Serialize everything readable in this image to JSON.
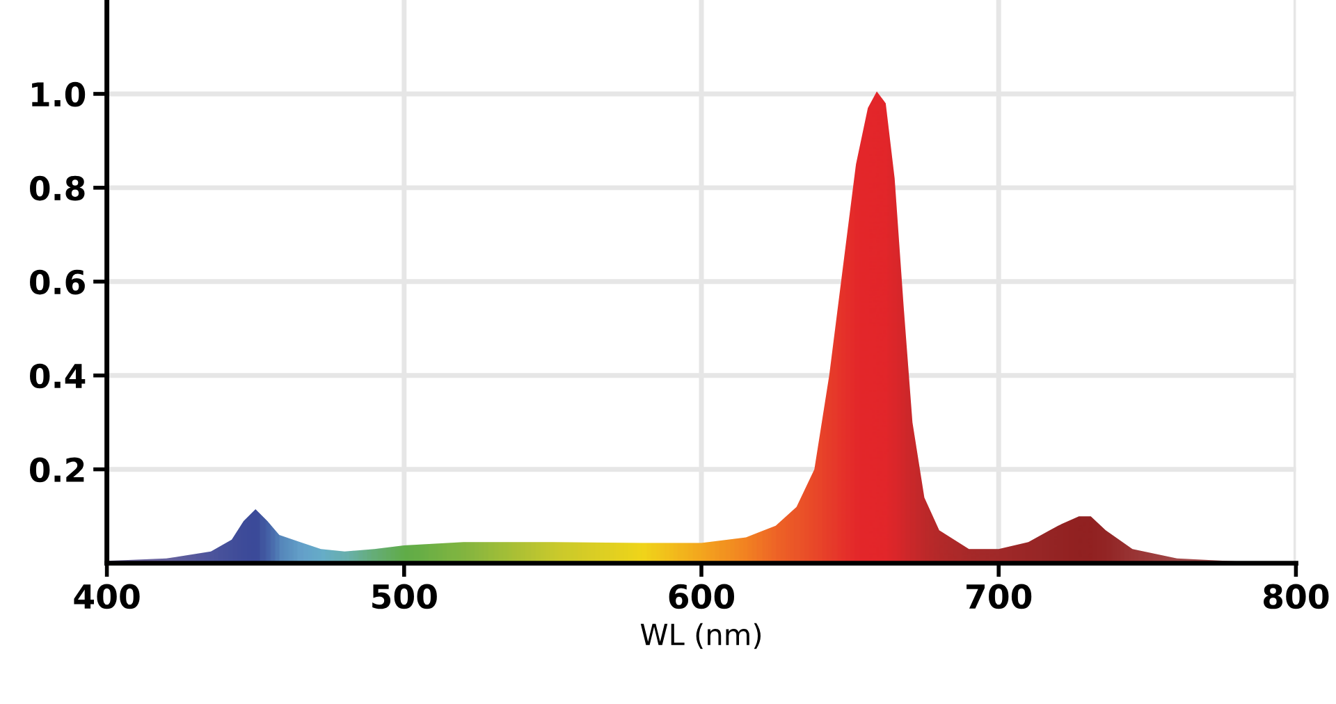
{
  "chart_data": {
    "type": "area",
    "xlabel": "WL (nm)",
    "color": "#e3262b",
    "x": [
      400,
      420,
      435,
      442,
      446,
      450,
      454,
      458,
      465,
      472,
      480,
      490,
      500,
      520,
      550,
      580,
      600,
      615,
      625,
      632,
      638,
      643,
      648,
      652,
      656,
      659,
      662,
      665,
      668,
      671,
      675,
      680,
      690,
      700,
      710,
      720,
      727,
      731,
      736,
      745,
      760,
      780,
      800
    ],
    "values": [
      0.005,
      0.01,
      0.025,
      0.05,
      0.09,
      0.115,
      0.09,
      0.06,
      0.045,
      0.03,
      0.025,
      0.03,
      0.038,
      0.045,
      0.045,
      0.043,
      0.043,
      0.055,
      0.08,
      0.12,
      0.2,
      0.4,
      0.65,
      0.85,
      0.97,
      1.005,
      0.98,
      0.82,
      0.55,
      0.3,
      0.14,
      0.07,
      0.03,
      0.03,
      0.045,
      0.08,
      0.1,
      0.1,
      0.07,
      0.03,
      0.01,
      0.004,
      0.002
    ],
    "colors": [
      "#6a6fa6",
      "#5a66a8",
      "#3f58a6",
      "#3452a4",
      "#2f4fa3",
      "#2d4ea3",
      "#3a6cb5",
      "#4a90c8",
      "#5aacd8",
      "#5cb9d6",
      "#5fbcb8",
      "#5bb97a",
      "#55b84b",
      "#7cc243",
      "#c6d72e",
      "#f1e41a",
      "#f6b01e",
      "#f38a22",
      "#ef6a27",
      "#ec5a29",
      "#ea4c2a",
      "#e8402b",
      "#e5322b",
      "#e42a2b",
      "#e3262b",
      "#e3262b",
      "#e2262b",
      "#dc272b",
      "#d2282b",
      "#c8292b",
      "#bb2a2b",
      "#b02a2a",
      "#a22a2a",
      "#9b2a2a",
      "#942828",
      "#8e2424",
      "#8a2121",
      "#8a2121",
      "#8c2525",
      "#933535",
      "#9a4a4a",
      "#a05555",
      "#a55a5a"
    ],
    "xlim": [
      400,
      800
    ],
    "ylim": [
      0,
      1.2
    ],
    "xticks": [
      400,
      500,
      600,
      700,
      800
    ],
    "yticks": [
      0.2,
      0.4,
      0.6,
      0.8,
      {
        "value": 1,
        "label": "1.0"
      }
    ],
    "grid": true
  }
}
